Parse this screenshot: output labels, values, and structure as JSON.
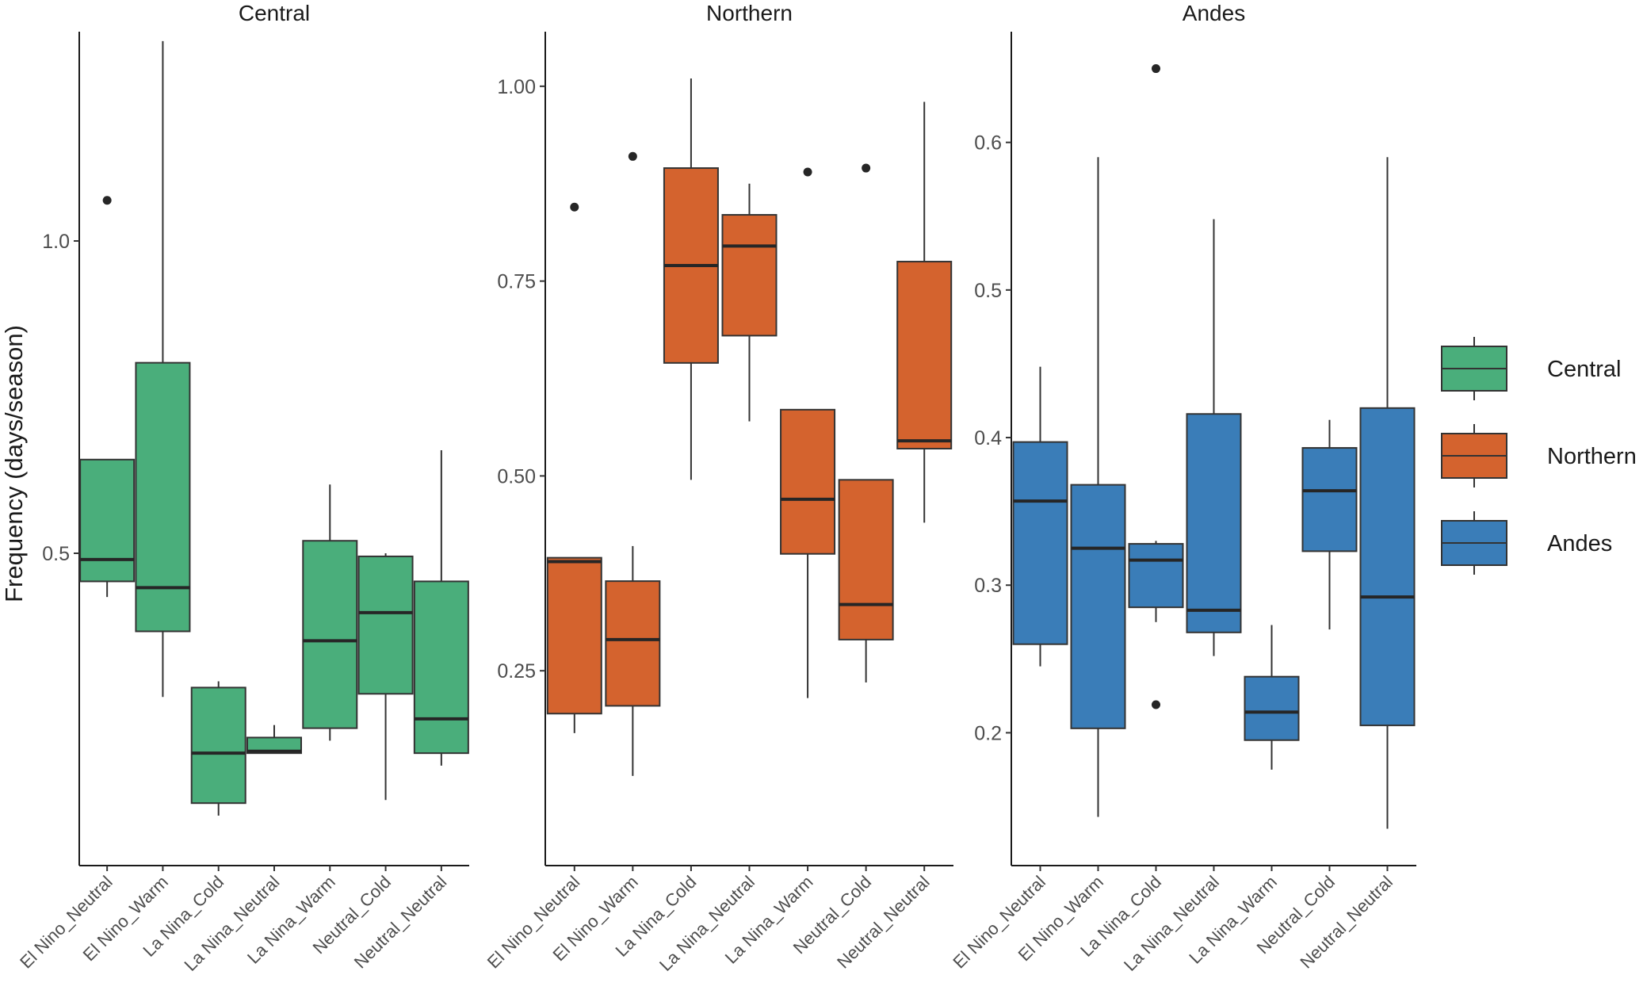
{
  "chart_data": {
    "type": "boxplot",
    "ylabel": "Frequency (days/season)",
    "categories": [
      "El Nino_Neutral",
      "El Nino_Warm",
      "La Nina_Cold",
      "La Nina_Neutral",
      "La Nina_Warm",
      "Neutral_Cold",
      "Neutral_Neutral"
    ],
    "legend": {
      "title": "",
      "position": "right",
      "entries": [
        "Central",
        "Northern",
        "Andes"
      ]
    },
    "panels": [
      {
        "title": "Central",
        "color": "#4aae7b",
        "ylim": [
          0.0,
          1.335
        ],
        "yticks": [
          0.5,
          1.0
        ],
        "ytick_labels": [
          "0.5",
          "1.0"
        ],
        "boxes": [
          {
            "category": "El Nino_Neutral",
            "min": 0.43,
            "q1": 0.455,
            "median": 0.49,
            "q3": 0.65,
            "max": 0.65,
            "outliers": [
              1.065
            ]
          },
          {
            "category": "El Nino_Warm",
            "min": 0.27,
            "q1": 0.375,
            "median": 0.445,
            "q3": 0.805,
            "max": 1.32,
            "outliers": []
          },
          {
            "category": "La Nina_Cold",
            "min": 0.08,
            "q1": 0.1,
            "median": 0.18,
            "q3": 0.285,
            "max": 0.295,
            "outliers": []
          },
          {
            "category": "La Nina_Neutral",
            "min": 0.18,
            "q1": 0.18,
            "median": 0.183,
            "q3": 0.205,
            "max": 0.225,
            "outliers": []
          },
          {
            "category": "La Nina_Warm",
            "min": 0.2,
            "q1": 0.22,
            "median": 0.36,
            "q3": 0.52,
            "max": 0.61,
            "outliers": []
          },
          {
            "category": "Neutral_Cold",
            "min": 0.105,
            "q1": 0.275,
            "median": 0.405,
            "q3": 0.495,
            "max": 0.5,
            "outliers": []
          },
          {
            "category": "Neutral_Neutral",
            "min": 0.16,
            "q1": 0.18,
            "median": 0.235,
            "q3": 0.455,
            "max": 0.665,
            "outliers": []
          }
        ]
      },
      {
        "title": "Northern",
        "color": "#d4632e",
        "ylim": [
          0.0,
          1.07
        ],
        "yticks": [
          0.25,
          0.5,
          0.75,
          1.0
        ],
        "ytick_labels": [
          "0.25",
          "0.50",
          "0.75",
          "1.00"
        ],
        "boxes": [
          {
            "category": "El Nino_Neutral",
            "min": 0.17,
            "q1": 0.195,
            "median": 0.39,
            "q3": 0.395,
            "max": 0.395,
            "outliers": [
              0.845
            ]
          },
          {
            "category": "El Nino_Warm",
            "min": 0.115,
            "q1": 0.205,
            "median": 0.29,
            "q3": 0.365,
            "max": 0.41,
            "outliers": [
              0.91
            ]
          },
          {
            "category": "La Nina_Cold",
            "min": 0.495,
            "q1": 0.645,
            "median": 0.77,
            "q3": 0.895,
            "max": 1.01,
            "outliers": []
          },
          {
            "category": "La Nina_Neutral",
            "min": 0.57,
            "q1": 0.68,
            "median": 0.795,
            "q3": 0.835,
            "max": 0.875,
            "outliers": []
          },
          {
            "category": "La Nina_Warm",
            "min": 0.215,
            "q1": 0.4,
            "median": 0.47,
            "q3": 0.585,
            "max": 0.585,
            "outliers": [
              0.89
            ]
          },
          {
            "category": "Neutral_Cold",
            "min": 0.235,
            "q1": 0.29,
            "median": 0.335,
            "q3": 0.495,
            "max": 0.495,
            "outliers": [
              0.895
            ]
          },
          {
            "category": "Neutral_Neutral",
            "min": 0.44,
            "q1": 0.535,
            "median": 0.545,
            "q3": 0.775,
            "max": 0.98,
            "outliers": []
          }
        ]
      },
      {
        "title": "Andes",
        "color": "#3a7db8",
        "ylim": [
          0.11,
          0.675
        ],
        "yticks": [
          0.2,
          0.3,
          0.4,
          0.5,
          0.6
        ],
        "ytick_labels": [
          "0.2",
          "0.3",
          "0.4",
          "0.5",
          "0.6"
        ],
        "boxes": [
          {
            "category": "El Nino_Neutral",
            "min": 0.245,
            "q1": 0.26,
            "median": 0.357,
            "q3": 0.397,
            "max": 0.448,
            "outliers": []
          },
          {
            "category": "El Nino_Warm",
            "min": 0.143,
            "q1": 0.203,
            "median": 0.325,
            "q3": 0.368,
            "max": 0.59,
            "outliers": []
          },
          {
            "category": "La Nina_Cold",
            "min": 0.275,
            "q1": 0.285,
            "median": 0.317,
            "q3": 0.328,
            "max": 0.33,
            "outliers": [
              0.65,
              0.219
            ]
          },
          {
            "category": "La Nina_Neutral",
            "min": 0.252,
            "q1": 0.268,
            "median": 0.283,
            "q3": 0.416,
            "max": 0.548,
            "outliers": []
          },
          {
            "category": "La Nina_Warm",
            "min": 0.175,
            "q1": 0.195,
            "median": 0.214,
            "q3": 0.238,
            "max": 0.273,
            "outliers": []
          },
          {
            "category": "Neutral_Cold",
            "min": 0.27,
            "q1": 0.323,
            "median": 0.364,
            "q3": 0.393,
            "max": 0.412,
            "outliers": []
          },
          {
            "category": "Neutral_Neutral",
            "min": 0.135,
            "q1": 0.205,
            "median": 0.292,
            "q3": 0.42,
            "max": 0.59,
            "outliers": []
          }
        ]
      }
    ]
  }
}
